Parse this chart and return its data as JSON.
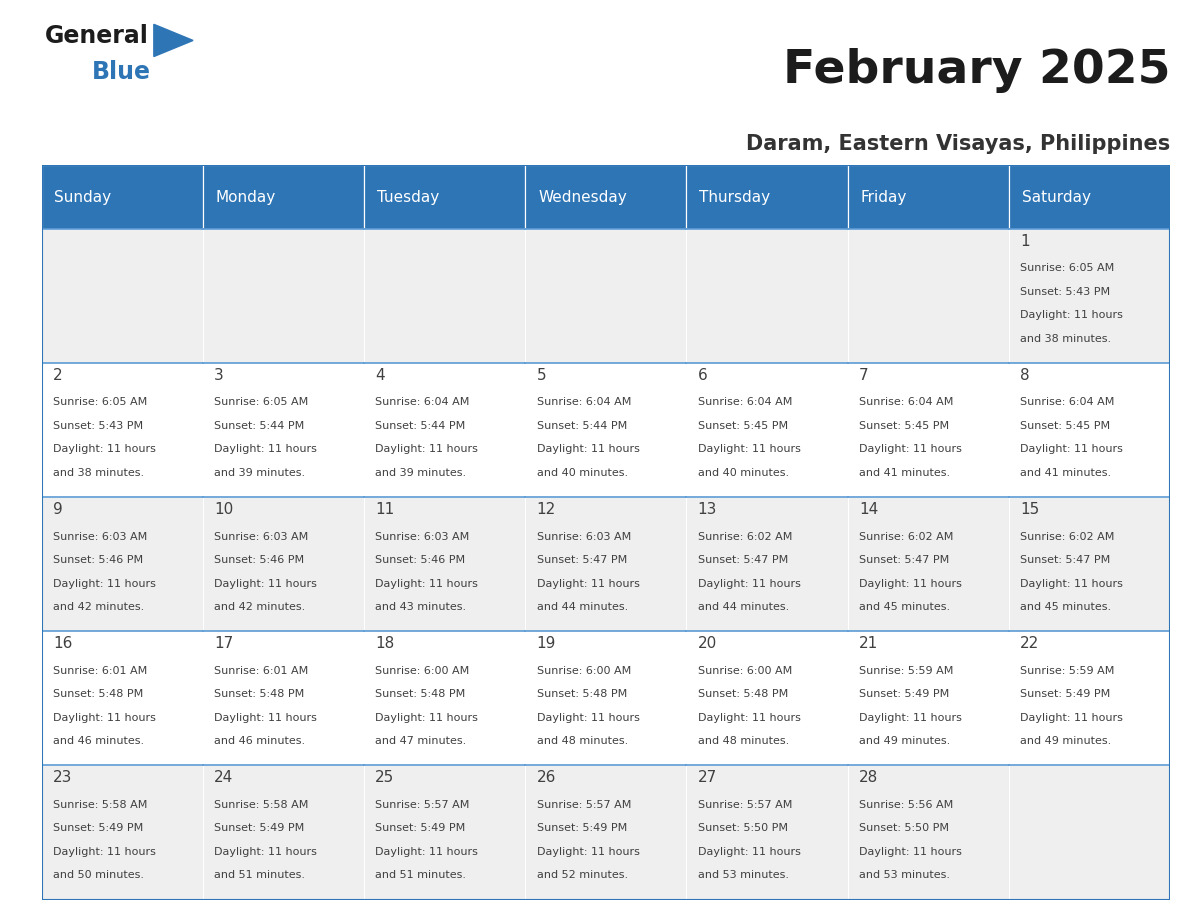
{
  "title": "February 2025",
  "subtitle": "Daram, Eastern Visayas, Philippines",
  "header_color": "#2e75b6",
  "header_text_color": "#ffffff",
  "cell_bg_white": "#ffffff",
  "cell_bg_gray": "#efefef",
  "border_color": "#2e75b6",
  "row_line_color": "#5b9bd5",
  "text_color": "#404040",
  "day_num_color": "#404040",
  "day_headers": [
    "Sunday",
    "Monday",
    "Tuesday",
    "Wednesday",
    "Thursday",
    "Friday",
    "Saturday"
  ],
  "calendar_data": [
    [
      null,
      null,
      null,
      null,
      null,
      null,
      {
        "day": "1",
        "sunrise": "6:05 AM",
        "sunset": "5:43 PM",
        "daylight_h": "11 hours",
        "daylight_m": "and 38 minutes."
      }
    ],
    [
      {
        "day": "2",
        "sunrise": "6:05 AM",
        "sunset": "5:43 PM",
        "daylight_h": "11 hours",
        "daylight_m": "and 38 minutes."
      },
      {
        "day": "3",
        "sunrise": "6:05 AM",
        "sunset": "5:44 PM",
        "daylight_h": "11 hours",
        "daylight_m": "and 39 minutes."
      },
      {
        "day": "4",
        "sunrise": "6:04 AM",
        "sunset": "5:44 PM",
        "daylight_h": "11 hours",
        "daylight_m": "and 39 minutes."
      },
      {
        "day": "5",
        "sunrise": "6:04 AM",
        "sunset": "5:44 PM",
        "daylight_h": "11 hours",
        "daylight_m": "and 40 minutes."
      },
      {
        "day": "6",
        "sunrise": "6:04 AM",
        "sunset": "5:45 PM",
        "daylight_h": "11 hours",
        "daylight_m": "and 40 minutes."
      },
      {
        "day": "7",
        "sunrise": "6:04 AM",
        "sunset": "5:45 PM",
        "daylight_h": "11 hours",
        "daylight_m": "and 41 minutes."
      },
      {
        "day": "8",
        "sunrise": "6:04 AM",
        "sunset": "5:45 PM",
        "daylight_h": "11 hours",
        "daylight_m": "and 41 minutes."
      }
    ],
    [
      {
        "day": "9",
        "sunrise": "6:03 AM",
        "sunset": "5:46 PM",
        "daylight_h": "11 hours",
        "daylight_m": "and 42 minutes."
      },
      {
        "day": "10",
        "sunrise": "6:03 AM",
        "sunset": "5:46 PM",
        "daylight_h": "11 hours",
        "daylight_m": "and 42 minutes."
      },
      {
        "day": "11",
        "sunrise": "6:03 AM",
        "sunset": "5:46 PM",
        "daylight_h": "11 hours",
        "daylight_m": "and 43 minutes."
      },
      {
        "day": "12",
        "sunrise": "6:03 AM",
        "sunset": "5:47 PM",
        "daylight_h": "11 hours",
        "daylight_m": "and 44 minutes."
      },
      {
        "day": "13",
        "sunrise": "6:02 AM",
        "sunset": "5:47 PM",
        "daylight_h": "11 hours",
        "daylight_m": "and 44 minutes."
      },
      {
        "day": "14",
        "sunrise": "6:02 AM",
        "sunset": "5:47 PM",
        "daylight_h": "11 hours",
        "daylight_m": "and 45 minutes."
      },
      {
        "day": "15",
        "sunrise": "6:02 AM",
        "sunset": "5:47 PM",
        "daylight_h": "11 hours",
        "daylight_m": "and 45 minutes."
      }
    ],
    [
      {
        "day": "16",
        "sunrise": "6:01 AM",
        "sunset": "5:48 PM",
        "daylight_h": "11 hours",
        "daylight_m": "and 46 minutes."
      },
      {
        "day": "17",
        "sunrise": "6:01 AM",
        "sunset": "5:48 PM",
        "daylight_h": "11 hours",
        "daylight_m": "and 46 minutes."
      },
      {
        "day": "18",
        "sunrise": "6:00 AM",
        "sunset": "5:48 PM",
        "daylight_h": "11 hours",
        "daylight_m": "and 47 minutes."
      },
      {
        "day": "19",
        "sunrise": "6:00 AM",
        "sunset": "5:48 PM",
        "daylight_h": "11 hours",
        "daylight_m": "and 48 minutes."
      },
      {
        "day": "20",
        "sunrise": "6:00 AM",
        "sunset": "5:48 PM",
        "daylight_h": "11 hours",
        "daylight_m": "and 48 minutes."
      },
      {
        "day": "21",
        "sunrise": "5:59 AM",
        "sunset": "5:49 PM",
        "daylight_h": "11 hours",
        "daylight_m": "and 49 minutes."
      },
      {
        "day": "22",
        "sunrise": "5:59 AM",
        "sunset": "5:49 PM",
        "daylight_h": "11 hours",
        "daylight_m": "and 49 minutes."
      }
    ],
    [
      {
        "day": "23",
        "sunrise": "5:58 AM",
        "sunset": "5:49 PM",
        "daylight_h": "11 hours",
        "daylight_m": "and 50 minutes."
      },
      {
        "day": "24",
        "sunrise": "5:58 AM",
        "sunset": "5:49 PM",
        "daylight_h": "11 hours",
        "daylight_m": "and 51 minutes."
      },
      {
        "day": "25",
        "sunrise": "5:57 AM",
        "sunset": "5:49 PM",
        "daylight_h": "11 hours",
        "daylight_m": "and 51 minutes."
      },
      {
        "day": "26",
        "sunrise": "5:57 AM",
        "sunset": "5:49 PM",
        "daylight_h": "11 hours",
        "daylight_m": "and 52 minutes."
      },
      {
        "day": "27",
        "sunrise": "5:57 AM",
        "sunset": "5:50 PM",
        "daylight_h": "11 hours",
        "daylight_m": "and 53 minutes."
      },
      {
        "day": "28",
        "sunrise": "5:56 AM",
        "sunset": "5:50 PM",
        "daylight_h": "11 hours",
        "daylight_m": "and 53 minutes."
      },
      null
    ]
  ],
  "logo_text_general": "General",
  "logo_text_blue": "Blue",
  "logo_triangle_color": "#2e75b6",
  "title_fontsize": 34,
  "subtitle_fontsize": 15,
  "header_fontsize": 11,
  "day_num_fontsize": 11,
  "cell_text_fontsize": 8
}
